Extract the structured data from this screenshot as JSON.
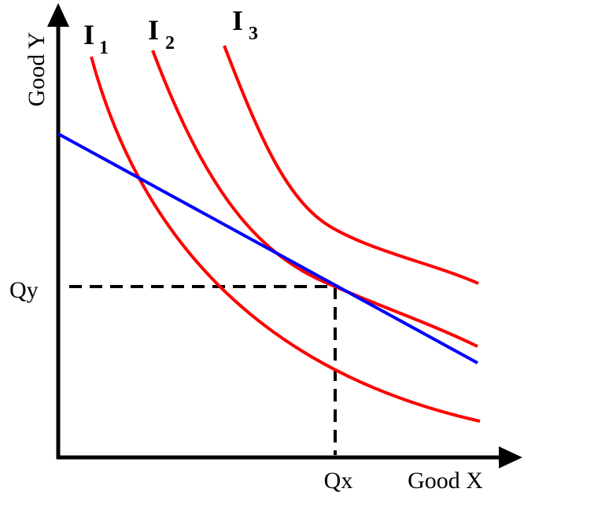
{
  "diagram": {
    "y_axis_label": "Good Y",
    "x_axis_label": "Good X",
    "qy_label": "Qy",
    "qx_label": "Qx",
    "curves": [
      {
        "letter": "I",
        "subscript": "1"
      },
      {
        "letter": "I",
        "subscript": "2"
      },
      {
        "letter": "I",
        "subscript": "3"
      }
    ]
  },
  "colors": {
    "indifference_curve": "#ff0000",
    "budget_line": "#0000ff",
    "axes": "#000000"
  }
}
